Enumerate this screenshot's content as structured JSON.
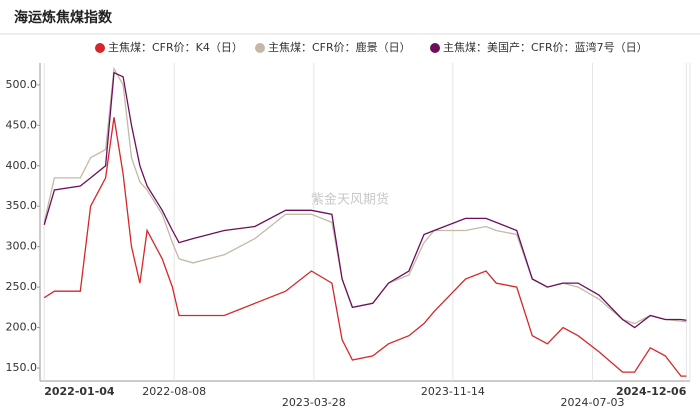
{
  "chart_data": {
    "type": "line",
    "title": "海运炼焦煤指数",
    "annotation": "紫金天风期货",
    "x": [
      "2022-01-04",
      "2022-01-21",
      "2022-03-05",
      "2022-03-22",
      "2022-04-16",
      "2022-04-30",
      "2022-05-15",
      "2022-05-29",
      "2022-06-12",
      "2022-06-24",
      "2022-07-19",
      "2022-08-05",
      "2022-08-16",
      "2022-09-08",
      "2022-10-30",
      "2022-12-20",
      "2023-02-09",
      "2023-03-24",
      "2023-04-27",
      "2023-05-14",
      "2023-05-31",
      "2023-07-04",
      "2023-07-30",
      "2023-09-02",
      "2023-09-27",
      "2023-10-14",
      "2023-12-05",
      "2024-01-08",
      "2024-01-25",
      "2024-02-28",
      "2024-03-25",
      "2024-04-19",
      "2024-05-15",
      "2024-06-09",
      "2024-07-14",
      "2024-08-22",
      "2024-09-11",
      "2024-10-07",
      "2024-11-01",
      "2024-11-27",
      "2024-12-06"
    ],
    "series": [
      {
        "name": "主焦煤：CFR价：K4（日）",
        "color": "#d7262b",
        "values": [
          237,
          245,
          245,
          350,
          385,
          460,
          390,
          300,
          255,
          320,
          285,
          250,
          215,
          215,
          215,
          230,
          245,
          270,
          255,
          185,
          160,
          165,
          180,
          190,
          205,
          220,
          260,
          270,
          255,
          250,
          190,
          180,
          200,
          190,
          170,
          145,
          145,
          175,
          165,
          140,
          140
        ]
      },
      {
        "name": "主焦煤：CFR价：鹿景（日）",
        "color": "#c4b8a6",
        "values": [
          330,
          385,
          385,
          410,
          420,
          520,
          500,
          410,
          380,
          370,
          340,
          305,
          285,
          280,
          290,
          310,
          340,
          340,
          330,
          260,
          225,
          230,
          255,
          265,
          305,
          320,
          320,
          325,
          320,
          315,
          260,
          250,
          255,
          250,
          235,
          210,
          205,
          215,
          210,
          208,
          207
        ]
      },
      {
        "name": "主焦煤：美国产：CFR价：蓝湾7号（日）",
        "color": "#6b0f5c",
        "values": [
          327,
          370,
          375,
          385,
          400,
          515,
          510,
          450,
          400,
          375,
          345,
          320,
          305,
          310,
          320,
          325,
          345,
          345,
          340,
          260,
          225,
          230,
          255,
          270,
          315,
          320,
          335,
          335,
          330,
          320,
          260,
          250,
          255,
          255,
          240,
          210,
          200,
          215,
          210,
          210,
          209
        ]
      }
    ],
    "xlim": [
      "2021-12-28",
      "2024-12-12"
    ],
    "xticks": [
      "2022-01-04",
      "2022-08-08",
      "2023-03-28",
      "2023-11-14",
      "2024-07-03",
      "2024-12-06"
    ],
    "ylim": [
      134,
      527
    ],
    "yticks": [
      {
        "value": 150,
        "label": "150.0"
      },
      {
        "value": 200,
        "label": "200.0"
      },
      {
        "value": 250,
        "label": "250.0"
      },
      {
        "value": 300,
        "label": "300.0"
      },
      {
        "value": 350,
        "label": "350.0"
      },
      {
        "value": 400,
        "label": "400.0"
      },
      {
        "value": 450,
        "label": "450.0"
      },
      {
        "value": 500,
        "label": "500.0"
      }
    ],
    "grid": true
  }
}
